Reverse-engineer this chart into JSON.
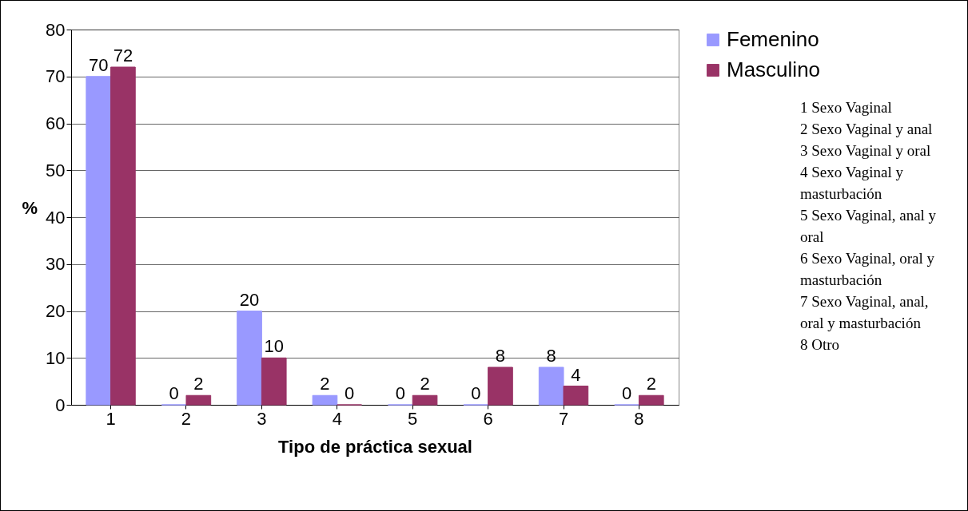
{
  "chart_data": {
    "type": "bar",
    "xlabel": "Tipo de práctica sexual",
    "ylabel": "%",
    "categories": [
      "1",
      "2",
      "3",
      "4",
      "5",
      "6",
      "7",
      "8"
    ],
    "series": [
      {
        "name": "Femenino",
        "color": "#9999ff",
        "values": [
          70,
          0,
          20,
          2,
          0,
          0,
          8,
          0
        ]
      },
      {
        "name": "Masculino",
        "color": "#993366",
        "values": [
          72,
          2,
          10,
          0,
          2,
          8,
          4,
          2
        ]
      }
    ],
    "ylim": [
      0,
      80
    ],
    "yticks": [
      0,
      10,
      20,
      30,
      40,
      50,
      60,
      70,
      80
    ],
    "grid": "y",
    "legend": "top right",
    "data_labels": true,
    "annotations": [
      "1 Sexo Vaginal",
      "2 Sexo Vaginal y anal",
      "3 Sexo Vaginal y oral",
      "4 Sexo Vaginal y masturbación",
      "5 Sexo Vaginal, anal y oral",
      "6 Sexo Vaginal, oral y masturbación",
      "7 Sexo Vaginal, anal, oral y masturbación",
      "8 Otro"
    ]
  }
}
